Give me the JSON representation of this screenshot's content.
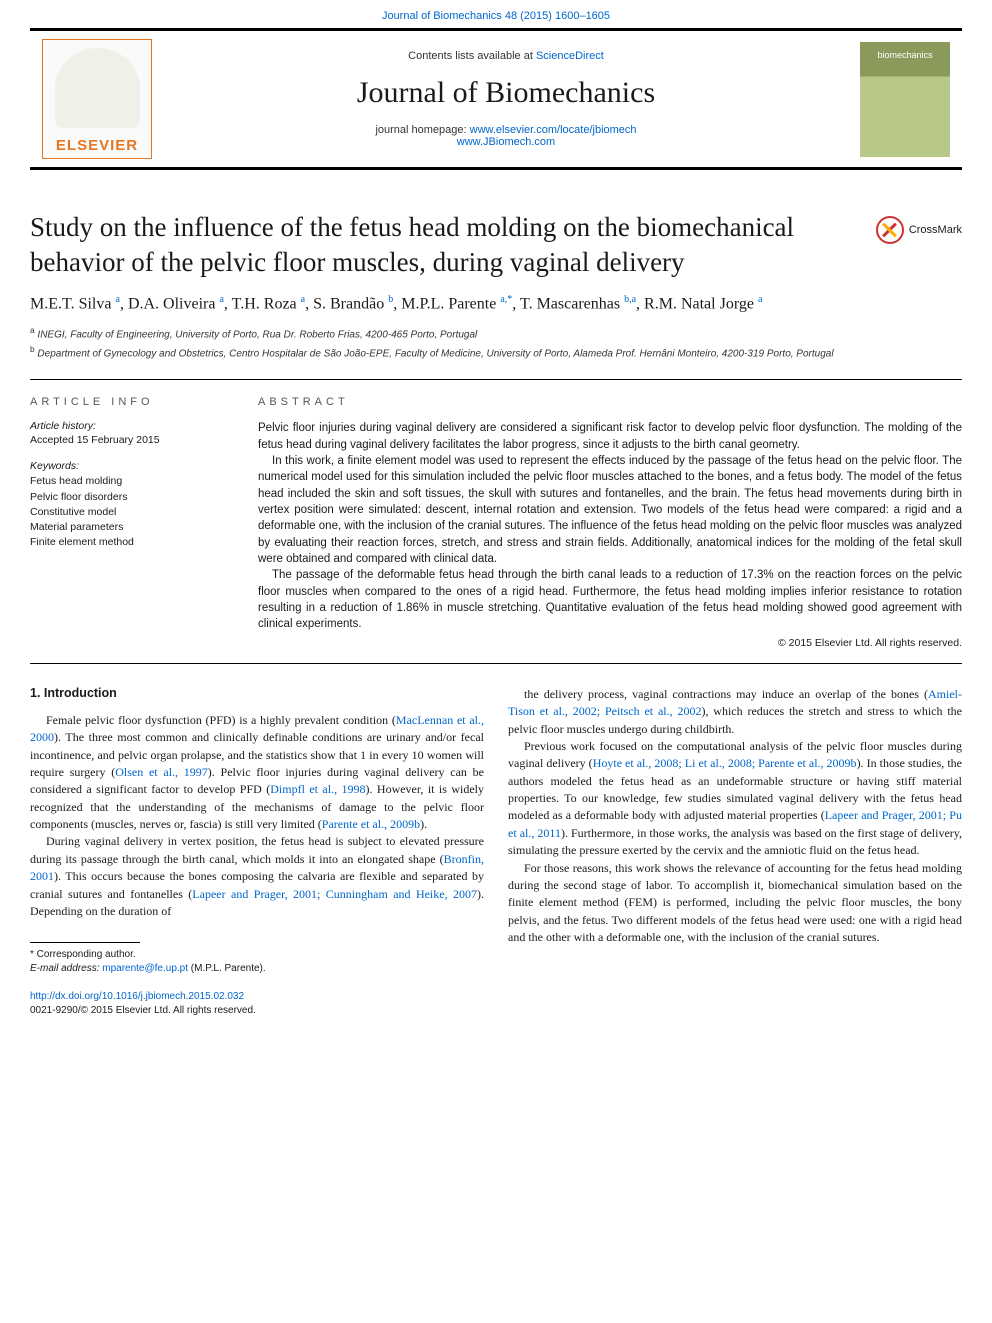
{
  "top_citation": "Journal of Biomechanics 48 (2015) 1600–1605",
  "header": {
    "contents_prefix": "Contents lists available at ",
    "contents_link": "ScienceDirect",
    "journal_name": "Journal of Biomechanics",
    "homepage_label": "journal homepage: ",
    "homepage_url1": "www.elsevier.com/locate/jbiomech",
    "homepage_url2": "www.JBiomech.com",
    "elsevier_label": "ELSEVIER",
    "cover_text": "biomechanics"
  },
  "article": {
    "title": "Study on the influence of the fetus head molding on the biomechanical behavior of the pelvic floor muscles, during vaginal delivery",
    "crossmark": "CrossMark"
  },
  "authors_html": "M.E.T. Silva <sup>a</sup>, D.A. Oliveira <sup>a</sup>, T.H. Roza <sup>a</sup>, S. Brandão <sup>b</sup>, M.P.L. Parente <sup>a,*</sup>, T. Mascarenhas <sup>b,a</sup>, R.M. Natal Jorge <sup>a</sup>",
  "affiliations": {
    "a": "INEGI, Faculty of Engineering, University of Porto, Rua Dr. Roberto Frias, 4200-465 Porto, Portugal",
    "b": "Department of Gynecology and Obstetrics, Centro Hospitalar de São João-EPE, Faculty of Medicine, University of Porto, Alameda Prof. Hernâni Monteiro, 4200-319 Porto, Portugal"
  },
  "meta": {
    "info_label": "ARTICLE INFO",
    "history_label": "Article history:",
    "history_text": "Accepted 15 February 2015",
    "keywords_label": "Keywords:",
    "keywords": [
      "Fetus head molding",
      "Pelvic floor disorders",
      "Constitutive model",
      "Material parameters",
      "Finite element method"
    ]
  },
  "abstract": {
    "label": "ABSTRACT",
    "paragraphs": [
      "Pelvic floor injuries during vaginal delivery are considered a significant risk factor to develop pelvic floor dysfunction. The molding of the fetus head during vaginal delivery facilitates the labor progress, since it adjusts to the birth canal geometry.",
      "In this work, a finite element model was used to represent the effects induced by the passage of the fetus head on the pelvic floor. The numerical model used for this simulation included the pelvic floor muscles attached to the bones, and a fetus body. The model of the fetus head included the skin and soft tissues, the skull with sutures and fontanelles, and the brain. The fetus head movements during birth in vertex position were simulated: descent, internal rotation and extension. Two models of the fetus head were compared: a rigid and a deformable one, with the inclusion of the cranial sutures. The influence of the fetus head molding on the pelvic floor muscles was analyzed by evaluating their reaction forces, stretch, and stress and strain fields. Additionally, anatomical indices for the molding of the fetal skull were obtained and compared with clinical data.",
      "The passage of the deformable fetus head through the birth canal leads to a reduction of 17.3% on the reaction forces on the pelvic floor muscles when compared to the ones of a rigid head. Furthermore, the fetus head molding implies inferior resistance to rotation resulting in a reduction of 1.86% in muscle stretching. Quantitative evaluation of the fetus head molding showed good agreement with clinical experiments."
    ],
    "copyright": "© 2015 Elsevier Ltd. All rights reserved."
  },
  "body": {
    "intro_heading": "1.  Introduction",
    "left_paragraphs": [
      "Female pelvic floor dysfunction (PFD) is a highly prevalent condition (<a href='#'>MacLennan et al., 2000</a>). The three most common and clinically definable conditions are urinary and/or fecal incontinence, and pelvic organ prolapse, and the statistics show that 1 in every 10 women will require surgery (<a href='#'>Olsen et al., 1997</a>). Pelvic floor injuries during vaginal delivery can be considered a significant factor to develop PFD (<a href='#'>Dimpfl et al., 1998</a>). However, it is widely recognized that the understanding of the mechanisms of damage to the pelvic floor components (muscles, nerves or, fascia) is still very limited (<a href='#'>Parente et al., 2009b</a>).",
      "During vaginal delivery in vertex position, the fetus head is subject to elevated pressure during its passage through the birth canal, which molds it into an elongated shape (<a href='#'>Bronfin, 2001</a>). This occurs because the bones composing the calvaria are flexible and separated by cranial sutures and fontanelles (<a href='#'>Lapeer and Prager, 2001; Cunningham and Heike, 2007</a>). Depending on the duration of"
    ],
    "right_paragraphs": [
      "the delivery process, vaginal contractions may induce an overlap of the bones (<a href='#'>Amiel-Tison et al., 2002; Peitsch et al., 2002</a>), which reduces the stretch and stress to which the pelvic floor muscles undergo during childbirth.",
      "Previous work focused on the computational analysis of the pelvic floor muscles during vaginal delivery (<a href='#'>Hoyte et al., 2008; Li et al., 2008; Parente et al., 2009b</a>). In those studies, the authors modeled the fetus head as an undeformable structure or having stiff material properties. To our knowledge, few studies simulated vaginal delivery with the fetus head modeled as a deformable body with adjusted material properties (<a href='#'>Lapeer and Prager, 2001; Pu et al., 2011</a>). Furthermore, in those works, the analysis was based on the first stage of delivery, simulating the pressure exerted by the cervix and the amniotic fluid on the fetus head.",
      "For those reasons, this work shows the relevance of accounting for the fetus head molding during the second stage of labor. To accomplish it, biomechanical simulation based on the finite element method (FEM) is performed, including the pelvic floor muscles, the bony pelvis, and the fetus. Two different models of the fetus head were used: one with a rigid head and the other with a deformable one, with the inclusion of the cranial sutures."
    ]
  },
  "footnote": {
    "corr_label": "* Corresponding author.",
    "email_label": "E-mail address:",
    "email": "mparente@fe.up.pt",
    "email_person": "(M.P.L. Parente)."
  },
  "doi": {
    "url": "http://dx.doi.org/10.1016/j.jbiomech.2015.02.032",
    "issn_copyright": "0021-9290/© 2015 Elsevier Ltd. All rights reserved."
  },
  "colors": {
    "link": "#0066cc",
    "elsevier_orange": "#e67722",
    "text": "#1a1a1a",
    "rule": "#000000"
  }
}
